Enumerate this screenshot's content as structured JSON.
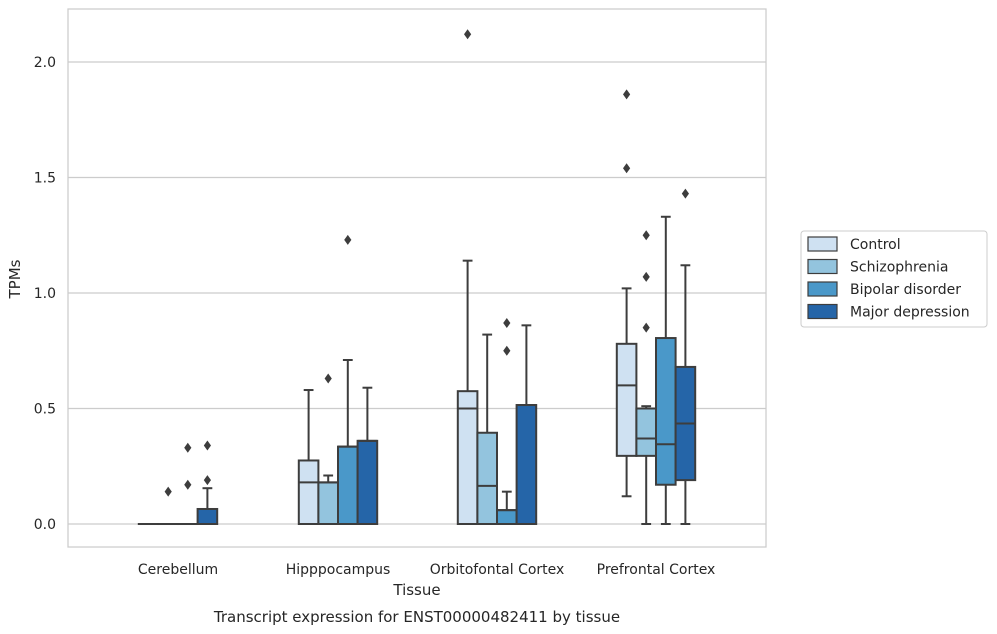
{
  "chart_data": {
    "type": "boxplot",
    "caption": "Transcript expression for ENST00000482411 by tissue",
    "xlabel": "Tissue",
    "ylabel": "TPMs",
    "ylim": [
      -0.1,
      2.25
    ],
    "yticks": [
      "0.0",
      "0.5",
      "1.0",
      "1.5",
      "2.0"
    ],
    "grid": "horizontal",
    "legend_position": "right",
    "categories": [
      "Cerebellum",
      "Hipppocampus",
      "Orbitofontal Cortex",
      "Prefrontal Cortex"
    ],
    "series": [
      {
        "name": "Control",
        "color": "#cfe1f2",
        "boxes": [
          {
            "q1": 0.0,
            "median": 0.0,
            "q3": 0.0,
            "whisker_low": 0.0,
            "whisker_high": 0.0,
            "outliers": []
          },
          {
            "q1": 0.0,
            "median": 0.18,
            "q3": 0.275,
            "whisker_low": 0.0,
            "whisker_high": 0.58,
            "outliers": []
          },
          {
            "q1": 0.0,
            "median": 0.5,
            "q3": 0.575,
            "whisker_low": 0.0,
            "whisker_high": 1.14,
            "outliers": [
              2.12
            ]
          },
          {
            "q1": 0.295,
            "median": 0.6,
            "q3": 0.78,
            "whisker_low": 0.12,
            "whisker_high": 1.02,
            "outliers": [
              1.54,
              1.86
            ]
          }
        ]
      },
      {
        "name": "Schizophrenia",
        "color": "#93c4de",
        "boxes": [
          {
            "q1": 0.0,
            "median": 0.0,
            "q3": 0.0,
            "whisker_low": 0.0,
            "whisker_high": 0.0,
            "outliers": [
              0.14
            ]
          },
          {
            "q1": 0.0,
            "median": 0.18,
            "q3": 0.18,
            "whisker_low": 0.0,
            "whisker_high": 0.21,
            "outliers": [
              0.63
            ]
          },
          {
            "q1": 0.0,
            "median": 0.165,
            "q3": 0.395,
            "whisker_low": 0.0,
            "whisker_high": 0.82,
            "outliers": []
          },
          {
            "q1": 0.295,
            "median": 0.37,
            "q3": 0.5,
            "whisker_low": 0.0,
            "whisker_high": 0.51,
            "outliers": [
              0.85,
              1.07,
              1.25
            ]
          }
        ]
      },
      {
        "name": "Bipolar disorder",
        "color": "#4a98c9",
        "boxes": [
          {
            "q1": 0.0,
            "median": 0.0,
            "q3": 0.0,
            "whisker_low": 0.0,
            "whisker_high": 0.0,
            "outliers": [
              0.17,
              0.33
            ]
          },
          {
            "q1": 0.0,
            "median": 0.335,
            "q3": 0.335,
            "whisker_low": 0.0,
            "whisker_high": 0.71,
            "outliers": [
              1.23
            ]
          },
          {
            "q1": 0.0,
            "median": 0.06,
            "q3": 0.06,
            "whisker_low": 0.0,
            "whisker_high": 0.14,
            "outliers": [
              0.75,
              0.87
            ]
          },
          {
            "q1": 0.17,
            "median": 0.345,
            "q3": 0.805,
            "whisker_low": 0.0,
            "whisker_high": 1.33,
            "outliers": []
          }
        ]
      },
      {
        "name": "Major depression",
        "color": "#2565a8",
        "boxes": [
          {
            "q1": 0.0,
            "median": 0.0,
            "q3": 0.065,
            "whisker_low": 0.0,
            "whisker_high": 0.155,
            "outliers": [
              0.19,
              0.34
            ]
          },
          {
            "q1": 0.0,
            "median": 0.36,
            "q3": 0.36,
            "whisker_low": 0.0,
            "whisker_high": 0.59,
            "outliers": []
          },
          {
            "q1": 0.0,
            "median": 0.515,
            "q3": 0.515,
            "whisker_low": 0.0,
            "whisker_high": 0.86,
            "outliers": []
          },
          {
            "q1": 0.19,
            "median": 0.435,
            "q3": 0.68,
            "whisker_low": 0.0,
            "whisker_high": 1.12,
            "outliers": [
              1.43
            ]
          }
        ]
      }
    ]
  }
}
